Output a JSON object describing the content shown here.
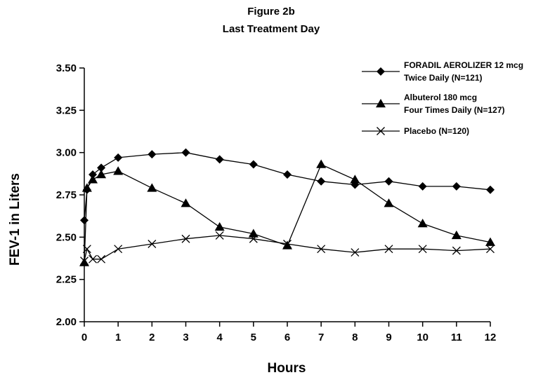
{
  "chart_data": {
    "type": "line",
    "title": "Figure 2b",
    "subtitle": "Last Treatment Day",
    "xlabel": "Hours",
    "ylabel": "FEV-1 in Liters",
    "xlim": [
      0,
      12
    ],
    "ylim": [
      2.0,
      3.5
    ],
    "x_ticks": [
      "0",
      "1",
      "2",
      "3",
      "4",
      "5",
      "6",
      "7",
      "8",
      "9",
      "10",
      "11",
      "12"
    ],
    "y_ticks": [
      "2.00",
      "2.25",
      "2.50",
      "2.75",
      "3.00",
      "3.25",
      "3.50"
    ],
    "grid": false,
    "legend_position": "top-right",
    "series": [
      {
        "name_lines": [
          "FORADIL AEROLIZER 12 mcg",
          "Twice Daily (N=121)"
        ],
        "marker": "diamond",
        "x": [
          0,
          0.08,
          0.25,
          0.5,
          1,
          2,
          3,
          4,
          5,
          6,
          7,
          8,
          9,
          10,
          11,
          12
        ],
        "y": [
          2.6,
          2.78,
          2.87,
          2.91,
          2.97,
          2.99,
          3.0,
          2.96,
          2.93,
          2.87,
          2.83,
          2.81,
          2.83,
          2.8,
          2.8,
          2.78
        ]
      },
      {
        "name_lines": [
          "Albuterol 180 mcg",
          "Four Times Daily (N=127)"
        ],
        "marker": "triangle",
        "x": [
          0,
          0.08,
          0.25,
          0.5,
          1,
          2,
          3,
          4,
          5,
          6,
          7,
          8,
          9,
          10,
          11,
          12
        ],
        "y": [
          2.35,
          2.79,
          2.84,
          2.87,
          2.89,
          2.79,
          2.7,
          2.56,
          2.52,
          2.45,
          2.93,
          2.84,
          2.7,
          2.58,
          2.51,
          2.47
        ]
      },
      {
        "name_lines": [
          "Placebo (N=120)"
        ],
        "marker": "x",
        "x": [
          0,
          0.08,
          0.25,
          0.5,
          1,
          2,
          3,
          4,
          5,
          6,
          7,
          8,
          9,
          10,
          11,
          12
        ],
        "y": [
          2.36,
          2.43,
          2.37,
          2.37,
          2.43,
          2.46,
          2.49,
          2.51,
          2.49,
          2.46,
          2.43,
          2.41,
          2.43,
          2.43,
          2.42,
          2.43
        ]
      }
    ]
  }
}
